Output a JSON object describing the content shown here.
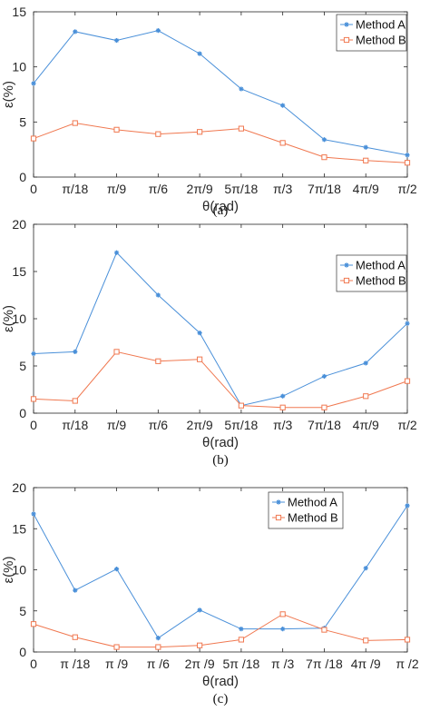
{
  "colors": {
    "series_a": "#4a90d9",
    "series_b": "#f07850",
    "axis": "#262626"
  },
  "chart_data": [
    {
      "type": "line",
      "panel_label": "(a)",
      "xlabel": "θ(rad)",
      "ylabel": "ε(%)",
      "categories": [
        "0",
        "π/18",
        "π/9",
        "π/6",
        "2π/9",
        "5π/18",
        "π/3",
        "7π/18",
        "4π/9",
        "π/2"
      ],
      "ylim": [
        0,
        15
      ],
      "yticks": [
        "0",
        "5",
        "10",
        "15"
      ],
      "legend_position": "top-right",
      "series": [
        {
          "name": "Method A",
          "marker": "star",
          "values": [
            8.5,
            13.2,
            12.4,
            13.3,
            11.2,
            8.0,
            6.5,
            3.4,
            2.7,
            2.0
          ]
        },
        {
          "name": "Method B",
          "marker": "square",
          "values": [
            3.5,
            4.9,
            4.3,
            3.9,
            4.1,
            4.4,
            3.1,
            1.8,
            1.5,
            1.3
          ]
        }
      ]
    },
    {
      "type": "line",
      "panel_label": "(b)",
      "xlabel": "θ(rad)",
      "ylabel": "ε(%)",
      "categories": [
        "0",
        "π/18",
        "π/9",
        "π/6",
        "2π/9",
        "5π/18",
        "π/3",
        "7π/18",
        "4π/9",
        "π/2"
      ],
      "ylim": [
        0,
        20
      ],
      "yticks": [
        "0",
        "5",
        "10",
        "15",
        "20"
      ],
      "legend_position": "top-right",
      "series": [
        {
          "name": "Method A",
          "marker": "star",
          "values": [
            6.3,
            6.5,
            17.0,
            12.5,
            8.5,
            0.8,
            1.8,
            3.9,
            5.3,
            9.5
          ]
        },
        {
          "name": "Method B",
          "marker": "square",
          "values": [
            1.5,
            1.3,
            6.5,
            5.5,
            5.7,
            0.8,
            0.6,
            0.6,
            1.8,
            3.4
          ]
        }
      ]
    },
    {
      "type": "line",
      "panel_label": "(c)",
      "xlabel": "θ(rad)",
      "ylabel": "ε(%)",
      "categories": [
        "0",
        "π /18",
        "π /9",
        "π /6",
        "2π /9",
        "5π /18",
        "π /3",
        "7π /18",
        "4π /9",
        "π /2"
      ],
      "ylim": [
        0,
        20
      ],
      "yticks": [
        "0",
        "5",
        "10",
        "15",
        "20"
      ],
      "legend_position": "top-center",
      "series": [
        {
          "name": "Method A",
          "marker": "star",
          "values": [
            16.8,
            7.5,
            10.1,
            1.7,
            5.1,
            2.8,
            2.8,
            2.9,
            10.2,
            17.8
          ]
        },
        {
          "name": "Method B",
          "marker": "square",
          "values": [
            3.4,
            1.8,
            0.6,
            0.6,
            0.8,
            1.5,
            4.6,
            2.7,
            1.4,
            1.5
          ]
        }
      ]
    }
  ]
}
